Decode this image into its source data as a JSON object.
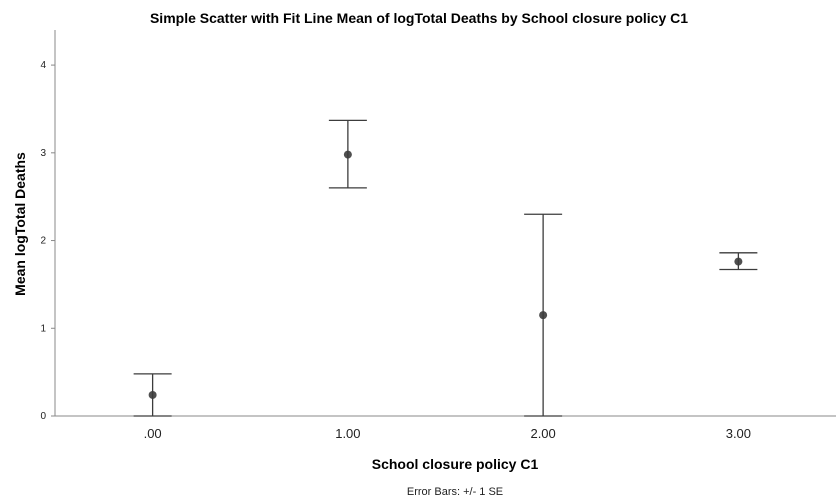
{
  "chart_data": {
    "type": "scatter",
    "title": "Simple Scatter with Fit Line Mean of logTotal Deaths by School closure policy C1",
    "xlabel": "School closure policy C1",
    "ylabel": "Mean logTotal Deaths",
    "footnote": "Error Bars: +/- 1 SE",
    "categories": [
      ".00",
      "1.00",
      "2.00",
      "3.00"
    ],
    "points": [
      {
        "x": ".00",
        "mean": 0.24,
        "lower": 0.0,
        "upper": 0.48
      },
      {
        "x": "1.00",
        "mean": 2.98,
        "lower": 2.6,
        "upper": 3.37
      },
      {
        "x": "2.00",
        "mean": 1.15,
        "lower": 0.0,
        "upper": 2.3
      },
      {
        "x": "3.00",
        "mean": 1.76,
        "lower": 1.67,
        "upper": 1.86
      }
    ],
    "ylim": [
      0,
      4.4
    ],
    "yticks": [
      "0",
      "1",
      "2",
      "3",
      "4"
    ],
    "grid": false,
    "colors": {
      "marker": "#3c3c3c",
      "errorbar": "#3c3c3c",
      "axis": "#888888"
    }
  }
}
